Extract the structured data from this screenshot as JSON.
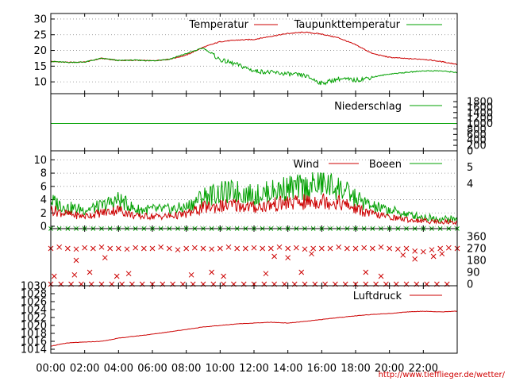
{
  "footer_url": "http://www.tiefflieger.de/wetter/",
  "x_ticks": [
    "00:00",
    "02:00",
    "04:00",
    "06:00",
    "08:00",
    "10:00",
    "12:00",
    "14:00",
    "16:00",
    "18:00",
    "20:00",
    "22:00"
  ],
  "colors": {
    "red": "#cc0000",
    "green": "#00a000",
    "grid": "#888888"
  },
  "chart_data": [
    {
      "type": "line",
      "panel": "temperature",
      "ylim": [
        7,
        31
      ],
      "yticks": [
        "10",
        "15",
        "20",
        "25",
        "30"
      ],
      "ytick_values": [
        10,
        15,
        20,
        25,
        30
      ],
      "grid": true,
      "legend_position": "top-right",
      "series": [
        {
          "name": "Temperatur",
          "color": "red",
          "x": [
            0,
            1,
            2,
            3,
            4,
            5,
            6,
            7,
            8,
            9,
            10,
            11,
            12,
            13,
            14,
            15,
            16,
            17,
            18,
            19,
            20,
            21,
            22,
            23,
            24
          ],
          "values": [
            16.5,
            16.2,
            16.3,
            17.5,
            16.8,
            16.9,
            16.7,
            17.2,
            18.5,
            21.0,
            22.8,
            23.3,
            23.5,
            24.5,
            25.4,
            25.8,
            25.2,
            24.0,
            21.8,
            19.0,
            17.8,
            17.4,
            17.2,
            16.5,
            15.6
          ]
        },
        {
          "name": "Taupunkttemperatur",
          "color": "green",
          "x": [
            0,
            1,
            2,
            3,
            4,
            5,
            6,
            7,
            8,
            9,
            10,
            11,
            12,
            13,
            14,
            15,
            16,
            17,
            18,
            19,
            20,
            21,
            22,
            23,
            24
          ],
          "values": [
            16.5,
            16.2,
            16.3,
            17.5,
            16.8,
            16.9,
            16.7,
            17.2,
            19.0,
            20.8,
            17.0,
            15.5,
            13.5,
            13.0,
            12.5,
            12.0,
            9.5,
            11.0,
            10.5,
            11.5,
            12.5,
            13.0,
            13.5,
            13.5,
            13.0
          ]
        }
      ]
    },
    {
      "type": "line",
      "panel": "precipitation",
      "ylim": [
        0,
        1800
      ],
      "yticks": [
        "0",
        "200",
        "400",
        "600",
        "800",
        "1000",
        "1200",
        "1400",
        "1600",
        "1800"
      ],
      "ytick_values": [
        0,
        200,
        400,
        600,
        800,
        1000,
        1200,
        1400,
        1600,
        1800
      ],
      "series": [
        {
          "name": "Niederschlag",
          "color": "green",
          "x": [
            0,
            24
          ],
          "values": [
            1000,
            1000
          ]
        }
      ]
    },
    {
      "type": "line",
      "panel": "wind",
      "ylim": [
        0,
        11
      ],
      "yticks": [
        "0",
        "2",
        "4",
        "6",
        "8",
        "10"
      ],
      "ytick_values": [
        0,
        2,
        4,
        6,
        8,
        10
      ],
      "right_labels": [
        "5",
        "4"
      ],
      "grid": true,
      "series": [
        {
          "name": "Wind",
          "color": "red",
          "x": [
            0,
            1,
            2,
            3,
            4,
            5,
            6,
            7,
            8,
            9,
            10,
            11,
            12,
            13,
            14,
            15,
            16,
            17,
            18,
            19,
            20,
            21,
            22,
            23,
            24
          ],
          "values": [
            2.5,
            1.8,
            1.5,
            2.0,
            2.5,
            1.5,
            1.5,
            1.5,
            1.8,
            2.8,
            3.0,
            3.2,
            2.8,
            3.2,
            3.5,
            3.6,
            3.9,
            3.6,
            2.6,
            1.8,
            1.4,
            1.0,
            0.8,
            0.7,
            0.6
          ]
        },
        {
          "name": "Boeen",
          "color": "green",
          "x": [
            0,
            1,
            2,
            3,
            4,
            5,
            6,
            7,
            8,
            9,
            10,
            11,
            12,
            13,
            14,
            15,
            16,
            17,
            18,
            19,
            20,
            21,
            22,
            23,
            24
          ],
          "values": [
            3.8,
            2.8,
            2.5,
            3.0,
            4.0,
            2.5,
            2.5,
            2.5,
            2.8,
            4.5,
            5.0,
            5.2,
            4.6,
            5.2,
            5.8,
            5.8,
            6.4,
            5.8,
            4.2,
            2.9,
            2.4,
            1.8,
            1.4,
            1.1,
            1.0
          ]
        }
      ]
    },
    {
      "type": "scatter",
      "panel": "wind_direction",
      "ylim": [
        0,
        360
      ],
      "right_labels": [
        "360",
        "270",
        "180",
        "90",
        "0"
      ],
      "right_label_values": [
        360,
        270,
        180,
        90,
        0
      ],
      "series": [
        {
          "color": "red",
          "x": [
            0.0,
            0.5,
            1.0,
            1.5,
            2.0,
            2.5,
            3.0,
            3.5,
            4.0,
            4.5,
            5.0,
            5.5,
            6.0,
            6.5,
            7.0,
            7.5,
            8.0,
            8.5,
            9.0,
            9.5,
            10.0,
            10.5,
            11.0,
            11.5,
            12.0,
            12.5,
            13.0,
            13.5,
            14.0,
            14.5,
            15.0,
            15.5,
            16.0,
            16.5,
            17.0,
            17.5,
            18.0,
            18.5,
            19.0,
            19.5,
            20.0,
            20.5,
            21.0,
            21.5,
            22.0,
            22.5,
            23.0,
            23.5,
            24.0,
            1.5,
            3.2,
            13.2,
            14.0,
            15.4,
            20.8,
            21.5,
            22.6,
            23.1,
            0.2,
            1.4,
            2.3,
            3.9,
            4.6,
            8.3,
            9.5,
            10.2,
            12.7,
            14.8,
            18.6,
            19.5
          ],
          "values": [
            270,
            280,
            270,
            265,
            275,
            270,
            280,
            270,
            270,
            265,
            275,
            270,
            270,
            280,
            270,
            260,
            270,
            275,
            270,
            265,
            270,
            280,
            270,
            270,
            275,
            270,
            270,
            280,
            270,
            275,
            265,
            270,
            270,
            270,
            280,
            270,
            270,
            275,
            270,
            280,
            270,
            265,
            270,
            250,
            245,
            260,
            270,
            275,
            270,
            180,
            200,
            210,
            200,
            230,
            220,
            190,
            210,
            230,
            60,
            70,
            90,
            60,
            80,
            70,
            90,
            60,
            80,
            90,
            90,
            60
          ]
        },
        {
          "color": "red",
          "x": [
            0.0,
            0.6,
            1.2,
            1.8,
            2.4,
            3.0,
            3.6,
            4.2,
            4.8,
            5.4,
            6.0,
            6.6,
            7.2,
            7.8,
            8.4,
            9.0,
            9.6,
            10.2,
            10.8,
            11.4,
            12.0,
            12.6,
            13.2,
            13.8,
            14.4,
            15.0,
            15.6,
            16.2,
            16.8,
            17.4,
            18.0,
            18.6,
            19.2,
            19.8,
            20.4,
            21.0,
            21.6,
            22.2,
            22.8,
            23.4
          ],
          "values": [
            0,
            0,
            0,
            0,
            0,
            0,
            0,
            0,
            0,
            0,
            0,
            0,
            0,
            0,
            0,
            0,
            0,
            0,
            0,
            0,
            0,
            0,
            0,
            0,
            0,
            0,
            0,
            0,
            0,
            0,
            0,
            0,
            0,
            0,
            0,
            0,
            0,
            0,
            0,
            0
          ]
        }
      ]
    },
    {
      "type": "line",
      "panel": "pressure",
      "ylim": [
        1013,
        1030
      ],
      "yticks": [
        "1014",
        "1016",
        "1018",
        "1020",
        "1022",
        "1024",
        "1026",
        "1028",
        "1030"
      ],
      "ytick_values": [
        1014,
        1016,
        1018,
        1020,
        1022,
        1024,
        1026,
        1028,
        1030
      ],
      "series": [
        {
          "name": "Luftdruck",
          "color": "red",
          "x": [
            0,
            1,
            2,
            3,
            4,
            5,
            6,
            7,
            8,
            9,
            10,
            11,
            12,
            13,
            14,
            15,
            16,
            17,
            18,
            19,
            20,
            21,
            22,
            23,
            24
          ],
          "values": [
            1014.8,
            1015.6,
            1015.8,
            1016.0,
            1016.8,
            1017.3,
            1017.8,
            1018.4,
            1019.0,
            1019.6,
            1020.0,
            1020.4,
            1020.6,
            1020.8,
            1020.6,
            1021.0,
            1021.5,
            1022.0,
            1022.4,
            1022.8,
            1023.0,
            1023.4,
            1023.6,
            1023.4,
            1023.6
          ]
        }
      ]
    }
  ]
}
